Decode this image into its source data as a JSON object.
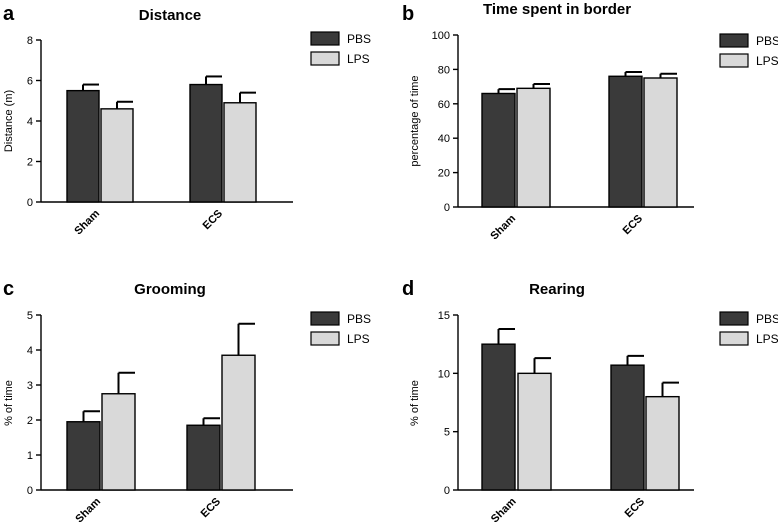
{
  "chart_data": [
    {
      "type": "bar",
      "panel": "a",
      "title": "Distance",
      "ylabel": "Distance (m)",
      "ylim": [
        0,
        8
      ],
      "yticks": [
        0,
        2,
        4,
        6,
        8
      ],
      "categories": [
        "Sham",
        "ECS"
      ],
      "series": [
        {
          "name": "PBS",
          "color": "#3a3a3a",
          "values": [
            5.5,
            5.8
          ],
          "errors": [
            0.3,
            0.4
          ]
        },
        {
          "name": "LPS",
          "color": "#d9d9d9",
          "values": [
            4.6,
            4.9
          ],
          "errors": [
            0.35,
            0.5
          ]
        }
      ]
    },
    {
      "type": "bar",
      "panel": "b",
      "title": "Time spent in border",
      "ylabel": "percentage of time",
      "ylim": [
        0,
        100
      ],
      "yticks": [
        0,
        20,
        40,
        60,
        80,
        100
      ],
      "categories": [
        "Sham",
        "ECS"
      ],
      "series": [
        {
          "name": "PBS",
          "color": "#3a3a3a",
          "values": [
            66,
            76
          ],
          "errors": [
            2.5,
            2.5
          ]
        },
        {
          "name": "LPS",
          "color": "#d9d9d9",
          "values": [
            69,
            75
          ],
          "errors": [
            2.5,
            2.5
          ]
        }
      ]
    },
    {
      "type": "bar",
      "panel": "c",
      "title": "Grooming",
      "ylabel": "% of time",
      "ylim": [
        0,
        5
      ],
      "yticks": [
        0,
        1,
        2,
        3,
        4,
        5
      ],
      "categories": [
        "Sham",
        "ECS"
      ],
      "series": [
        {
          "name": "PBS",
          "color": "#3a3a3a",
          "values": [
            1.95,
            1.85
          ],
          "errors": [
            0.3,
            0.2
          ]
        },
        {
          "name": "LPS",
          "color": "#d9d9d9",
          "values": [
            2.75,
            3.85
          ],
          "errors": [
            0.6,
            0.9
          ]
        }
      ]
    },
    {
      "type": "bar",
      "panel": "d",
      "title": "Rearing",
      "ylabel": "% of time",
      "ylim": [
        0,
        15
      ],
      "yticks": [
        0,
        5,
        10,
        15
      ],
      "categories": [
        "Sham",
        "ECS"
      ],
      "series": [
        {
          "name": "PBS",
          "color": "#3a3a3a",
          "values": [
            12.5,
            10.7
          ],
          "errors": [
            1.3,
            0.8
          ]
        },
        {
          "name": "LPS",
          "color": "#d9d9d9",
          "values": [
            10.0,
            8.0
          ],
          "errors": [
            1.3,
            1.2
          ]
        }
      ]
    }
  ]
}
